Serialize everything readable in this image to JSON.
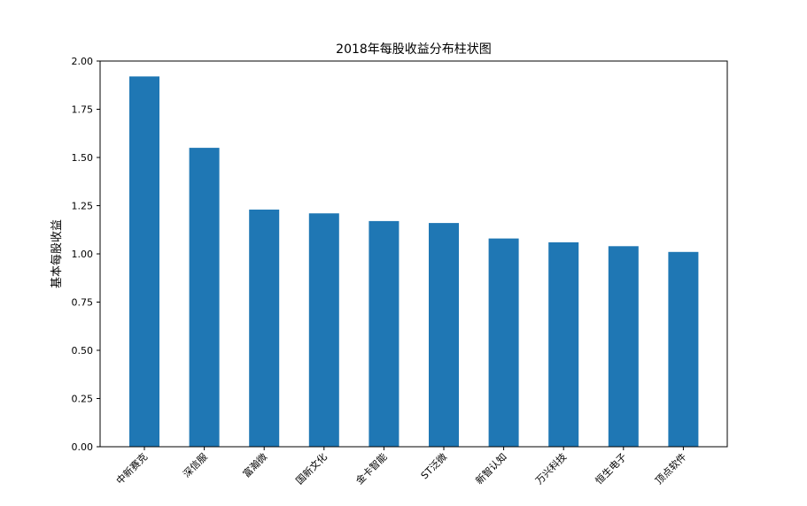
{
  "chart_data": {
    "type": "bar",
    "title": "2018年每股收益分布柱状图",
    "xlabel": "",
    "ylabel": "基本每股收益",
    "categories": [
      "中新赛克",
      "深信服",
      "富瀚微",
      "国新文化",
      "金卡智能",
      "ST泛微",
      "新智认知",
      "万兴科技",
      "恒生电子",
      "顶点软件"
    ],
    "values": [
      1.92,
      1.55,
      1.23,
      1.21,
      1.17,
      1.16,
      1.08,
      1.06,
      1.04,
      1.01
    ],
    "ylim": [
      0,
      2.0
    ],
    "yticks": [
      "0.00",
      "0.25",
      "0.50",
      "0.75",
      "1.00",
      "1.25",
      "1.50",
      "1.75",
      "2.00"
    ],
    "grid": false,
    "bar_color": "#1f77b4"
  }
}
